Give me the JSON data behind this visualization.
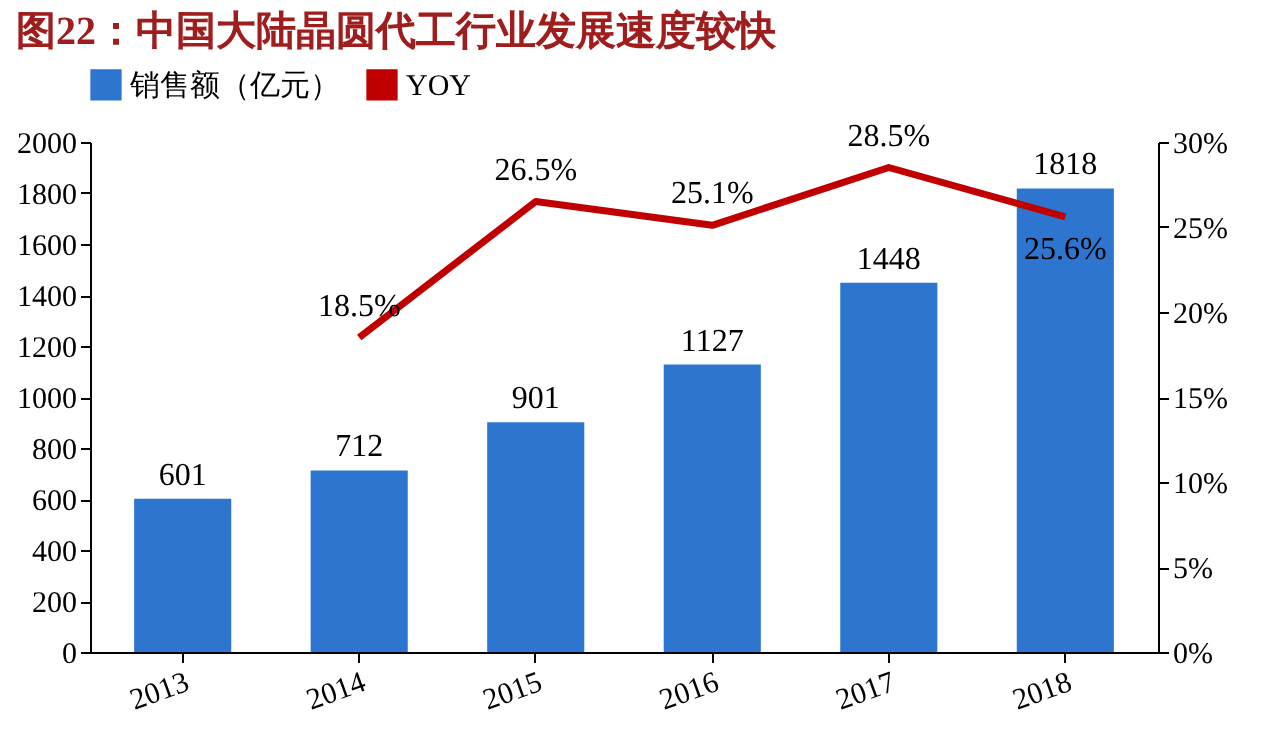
{
  "chart_data": {
    "type": "bar",
    "title": "图22：中国大陆晶圆代工行业发展速度较快",
    "categories": [
      "2013",
      "2014",
      "2015",
      "2016",
      "2017",
      "2018"
    ],
    "series": [
      {
        "name": "销售额（亿元）",
        "color": "#2e75cf",
        "values": [
          601,
          712,
          901,
          1127,
          1448,
          1818
        ],
        "value_labels": [
          "601",
          "712",
          "901",
          "1127",
          "1448",
          "1818"
        ]
      },
      {
        "name": "YOY",
        "type": "line",
        "axis": "y2",
        "color": "#c00000",
        "values": [
          null,
          18.5,
          26.5,
          25.1,
          28.5,
          25.6
        ],
        "value_labels": [
          null,
          "18.5%",
          "26.5%",
          "25.1%",
          "28.5%",
          "25.6%"
        ]
      }
    ],
    "ylim": [
      0,
      2000
    ],
    "yticks": [
      0,
      200,
      400,
      600,
      800,
      1000,
      1200,
      1400,
      1600,
      1800,
      2000
    ],
    "y2lim": [
      0,
      30
    ],
    "y2ticks": [
      {
        "value": 0,
        "label": "0%"
      },
      {
        "value": 5,
        "label": "5%"
      },
      {
        "value": 10,
        "label": "10%"
      },
      {
        "value": 15,
        "label": "15%"
      },
      {
        "value": 20,
        "label": "20%"
      },
      {
        "value": 25,
        "label": "25%"
      },
      {
        "value": 30,
        "label": "30%"
      }
    ],
    "legend": "top",
    "grid": false,
    "marker": "none",
    "line_style": "solid"
  }
}
